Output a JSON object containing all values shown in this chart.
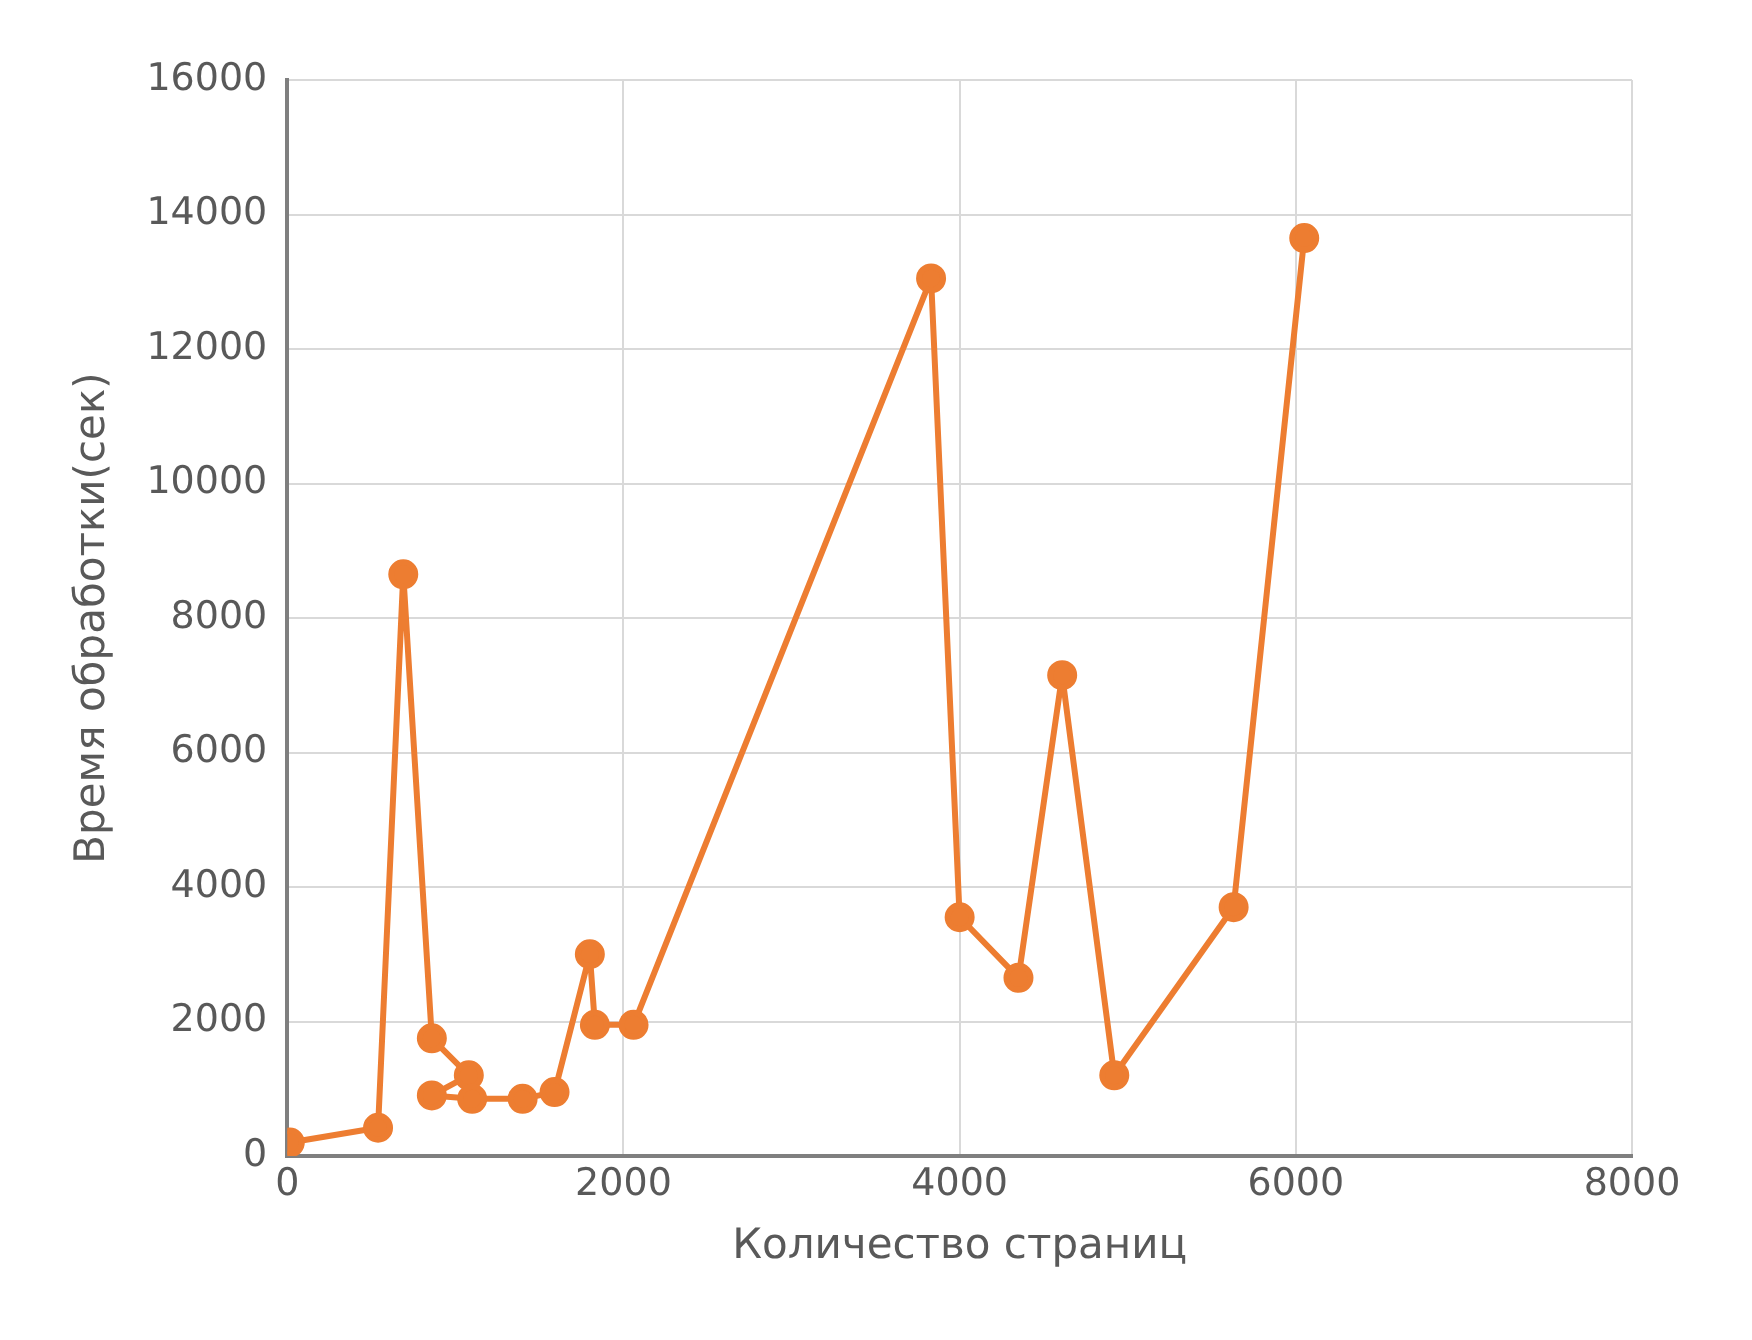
{
  "chart_data": {
    "type": "line",
    "xlabel": "Количество страниц",
    "ylabel": "Время обработки(сек)",
    "x": [
      15,
      540,
      690,
      860,
      1080,
      860,
      1100,
      1400,
      1590,
      1800,
      1830,
      2060,
      3830,
      4000,
      4350,
      4610,
      4920,
      5630,
      6050
    ],
    "series": [
      {
        "color": "#ed7d31",
        "values": [
          200,
          420,
          8650,
          1750,
          1200,
          900,
          850,
          850,
          950,
          3000,
          1950,
          1950,
          13050,
          3550,
          2650,
          7150,
          1200,
          3700,
          13650
        ]
      }
    ],
    "xlim": [
      0,
      8000
    ],
    "xticks": [
      0,
      2000,
      4000,
      6000,
      8000
    ],
    "ylim": [
      0,
      16000
    ],
    "yticks": [
      0,
      2000,
      4000,
      6000,
      8000,
      10000,
      12000,
      14000,
      16000
    ],
    "grid": true,
    "legend": false,
    "marker": "circle",
    "line_style": "solid"
  }
}
